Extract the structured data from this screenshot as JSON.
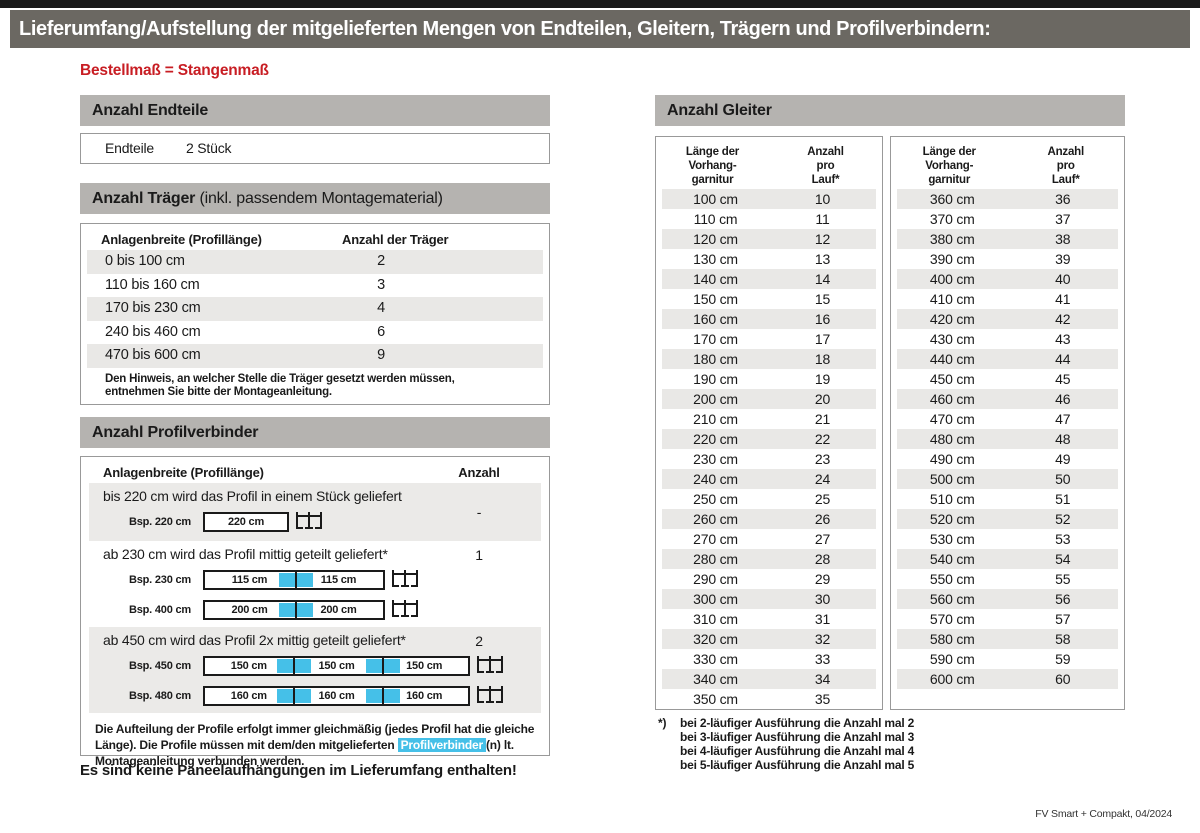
{
  "page": {
    "title": "Lieferumfang/Aufstellung der mitgelieferten Mengen von Endteilen, Gleitern, Trägern und Profilverbindern:",
    "subtitle": "Bestellmaß = Stangenmaß",
    "footer": "FV Smart + Compakt, 04/2024",
    "colors": {
      "accent_red": "#c81d23",
      "highlight_blue": "#45c0e8",
      "titlebar_gray": "#6b6862",
      "section_gray": "#b5b3b0",
      "stripe_gray": "#e9e8e6"
    }
  },
  "endteile": {
    "heading": "Anzahl Endteile",
    "label": "Endteile",
    "value": "2 Stück"
  },
  "traeger": {
    "heading_bold": "Anzahl Träger",
    "heading_rest": " (inkl. passendem Montagematerial)",
    "col1": "Anlagenbreite (Profillänge)",
    "col2": "Anzahl der Träger",
    "rows": [
      [
        "0 bis 100 cm",
        "2"
      ],
      [
        "110 bis 160 cm",
        "3"
      ],
      [
        "170 bis 230 cm",
        "4"
      ],
      [
        "240 bis 460 cm",
        "6"
      ],
      [
        "470 bis 600 cm",
        "9"
      ]
    ],
    "note": "Den Hinweis, an welcher Stelle die Träger gesetzt werden müssen, entnehmen Sie bitte der Montageanleitung."
  },
  "profilverbinder": {
    "heading": "Anzahl Profilverbinder",
    "col1": "Anlagenbreite (Profillänge)",
    "col2": "Anzahl",
    "blocks": [
      {
        "text": "bis 220 cm wird das Profil in einem Stück geliefert",
        "anzahl": "-",
        "examples": [
          {
            "label": "Bsp. 220 cm",
            "segments": [
              "220 cm"
            ]
          }
        ]
      },
      {
        "text": "ab 230 cm wird das Profil mittig geteilt geliefert*",
        "anzahl": "1",
        "examples": [
          {
            "label": "Bsp. 230 cm",
            "segments": [
              "115 cm",
              "115 cm"
            ]
          },
          {
            "label": "Bsp. 400 cm",
            "segments": [
              "200 cm",
              "200 cm"
            ]
          }
        ]
      },
      {
        "text": "ab 450 cm wird das Profil 2x mittig geteilt geliefert*",
        "anzahl": "2",
        "examples": [
          {
            "label": "Bsp. 450 cm",
            "segments": [
              "150 cm",
              "150 cm",
              "150 cm"
            ]
          },
          {
            "label": "Bsp. 480 cm",
            "segments": [
              "160 cm",
              "160 cm",
              "160 cm"
            ]
          }
        ]
      }
    ],
    "note_part1": "Die Aufteilung der Profile erfolgt immer gleichmäßig (jedes Profil hat die gleiche Länge). Die Profile müssen mit dem/den mitgelieferten ",
    "note_highlight": "Profilverbinder",
    "note_part2": "(n) lt. Montageanleitung verbunden werden.",
    "warning": "Es sind keine Paneelaufhängungen im Lieferumfang enthalten!"
  },
  "gleiter": {
    "heading": "Anzahl Gleiter",
    "col1": [
      "Länge der",
      "Vorhang-",
      "garnitur"
    ],
    "col2": [
      "Anzahl",
      "pro",
      "Lauf*"
    ],
    "table_left": [
      [
        "100 cm",
        "10"
      ],
      [
        "110 cm",
        "11"
      ],
      [
        "120 cm",
        "12"
      ],
      [
        "130 cm",
        "13"
      ],
      [
        "140 cm",
        "14"
      ],
      [
        "150 cm",
        "15"
      ],
      [
        "160 cm",
        "16"
      ],
      [
        "170 cm",
        "17"
      ],
      [
        "180 cm",
        "18"
      ],
      [
        "190 cm",
        "19"
      ],
      [
        "200 cm",
        "20"
      ],
      [
        "210 cm",
        "21"
      ],
      [
        "220 cm",
        "22"
      ],
      [
        "230 cm",
        "23"
      ],
      [
        "240 cm",
        "24"
      ],
      [
        "250 cm",
        "25"
      ],
      [
        "260 cm",
        "26"
      ],
      [
        "270 cm",
        "27"
      ],
      [
        "280 cm",
        "28"
      ],
      [
        "290 cm",
        "29"
      ],
      [
        "300 cm",
        "30"
      ],
      [
        "310 cm",
        "31"
      ],
      [
        "320 cm",
        "32"
      ],
      [
        "330 cm",
        "33"
      ],
      [
        "340 cm",
        "34"
      ],
      [
        "350 cm",
        "35"
      ]
    ],
    "table_right": [
      [
        "360 cm",
        "36"
      ],
      [
        "370 cm",
        "37"
      ],
      [
        "380 cm",
        "38"
      ],
      [
        "390 cm",
        "39"
      ],
      [
        "400 cm",
        "40"
      ],
      [
        "410 cm",
        "41"
      ],
      [
        "420 cm",
        "42"
      ],
      [
        "430 cm",
        "43"
      ],
      [
        "440 cm",
        "44"
      ],
      [
        "450 cm",
        "45"
      ],
      [
        "460 cm",
        "46"
      ],
      [
        "470 cm",
        "47"
      ],
      [
        "480 cm",
        "48"
      ],
      [
        "490 cm",
        "49"
      ],
      [
        "500 cm",
        "50"
      ],
      [
        "510 cm",
        "51"
      ],
      [
        "520 cm",
        "52"
      ],
      [
        "530 cm",
        "53"
      ],
      [
        "540 cm",
        "54"
      ],
      [
        "550 cm",
        "55"
      ],
      [
        "560 cm",
        "56"
      ],
      [
        "570 cm",
        "57"
      ],
      [
        "580 cm",
        "58"
      ],
      [
        "590 cm",
        "59"
      ],
      [
        "600 cm",
        "60"
      ]
    ],
    "footnote_marker": "*)",
    "footnotes": [
      "bei 2-läufiger Ausführung die Anzahl mal 2",
      "bei 3-läufiger Ausführung die Anzahl mal 3",
      "bei 4-läufiger Ausführung die Anzahl mal 4",
      "bei 5-läufiger Ausführung die Anzahl mal 5"
    ]
  }
}
